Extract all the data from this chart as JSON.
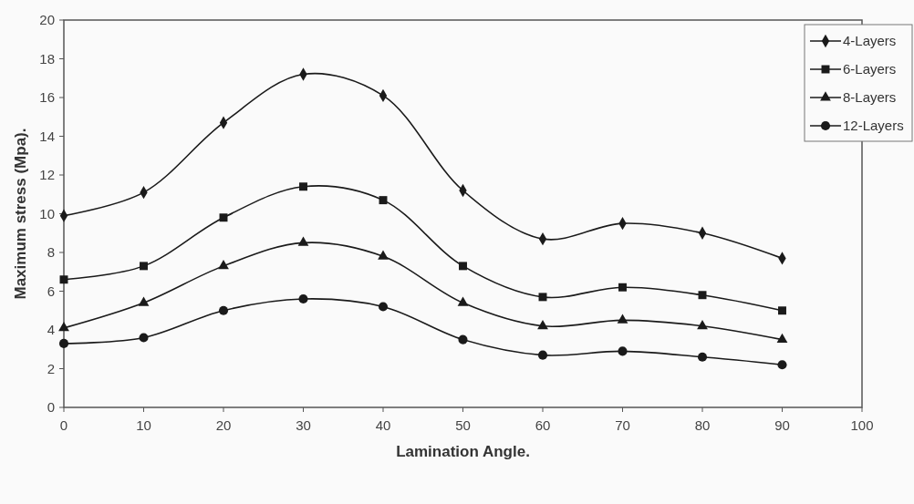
{
  "chart_data": {
    "type": "line",
    "xlabel": "Lamination Angle.",
    "ylabel": "Maximum stress (Mpa).",
    "x": [
      0,
      10,
      20,
      30,
      40,
      50,
      60,
      70,
      80,
      90
    ],
    "xlim": [
      0,
      100
    ],
    "xticks": [
      0,
      10,
      20,
      30,
      40,
      50,
      60,
      70,
      80,
      90,
      100
    ],
    "ylim": [
      0,
      20
    ],
    "yticks": [
      0,
      2,
      4,
      6,
      8,
      10,
      12,
      14,
      16,
      18,
      20
    ],
    "grid": false,
    "legend": "top right",
    "line_style": "solid",
    "series": [
      {
        "name": "4-Layers",
        "color": "#1a1a1a",
        "marker": "diamond",
        "values": [
          9.9,
          11.1,
          14.7,
          17.2,
          16.1,
          11.2,
          8.7,
          9.5,
          9.0,
          7.7
        ]
      },
      {
        "name": "6-Layers",
        "color": "#1a1a1a",
        "marker": "square",
        "values": [
          6.6,
          7.3,
          9.8,
          11.4,
          10.7,
          7.3,
          5.7,
          6.2,
          5.8,
          5.0
        ]
      },
      {
        "name": "8-Layers",
        "color": "#1a1a1a",
        "marker": "triangle",
        "values": [
          4.1,
          5.4,
          7.3,
          8.5,
          7.8,
          5.4,
          4.2,
          4.5,
          4.2,
          3.5
        ]
      },
      {
        "name": "12-Layers",
        "color": "#1a1a1a",
        "marker": "circle",
        "values": [
          3.3,
          3.6,
          5.0,
          5.6,
          5.2,
          3.5,
          2.7,
          2.9,
          2.6,
          2.2
        ]
      }
    ]
  }
}
